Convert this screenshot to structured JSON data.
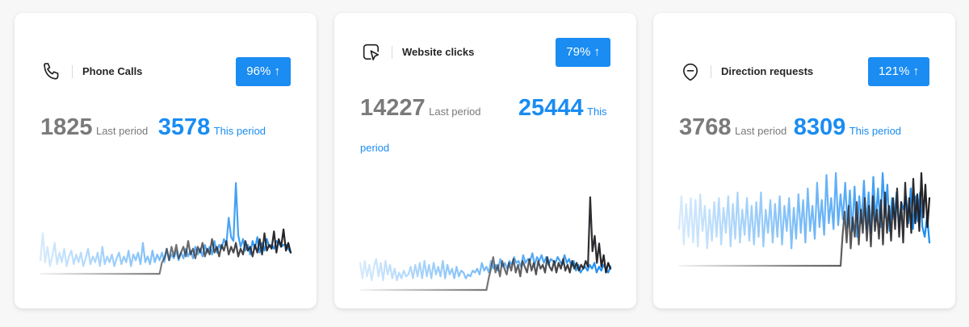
{
  "colors": {
    "accent": "#1a8cf2",
    "muted_text": "#7a7a7a",
    "current_series": "#1a8cf2",
    "previous_series": "#1f1f24"
  },
  "cards": [
    {
      "icon": "phone-icon",
      "title": "Phone Calls",
      "badge": "96% ↑",
      "last_value": "1825",
      "last_label": "Last period",
      "this_value": "3578",
      "this_label": "This period"
    },
    {
      "icon": "click-icon",
      "title": "Website clicks",
      "badge": "79% ↑",
      "last_value": "14227",
      "last_label": "Last period",
      "this_value": "25444",
      "this_label": "This period"
    },
    {
      "icon": "direction-icon",
      "title": "Direction requests",
      "badge": "121% ↑",
      "last_value": "3768",
      "last_label": "Last period",
      "this_value": "8309",
      "this_label": "This period"
    }
  ],
  "chart_data": [
    {
      "type": "line",
      "ylim": [
        0,
        100
      ],
      "series": [
        {
          "values": [
            14,
            42,
            12,
            28,
            8,
            18,
            32,
            10,
            22,
            12,
            26,
            8,
            18,
            24,
            10,
            20,
            12,
            22,
            8,
            16,
            26,
            10,
            18,
            12,
            22,
            8,
            28,
            10,
            18,
            12,
            20,
            8,
            16,
            22,
            10,
            18,
            12,
            24,
            8,
            20,
            14,
            22,
            10,
            32,
            12,
            18,
            10,
            24,
            12,
            20,
            14,
            22,
            12,
            26,
            14,
            20,
            16,
            24,
            14,
            22,
            16,
            26,
            18,
            24,
            16,
            28,
            20,
            26,
            18,
            30,
            22,
            28,
            20,
            34,
            22,
            30,
            26,
            36,
            30,
            58,
            38,
            34,
            94,
            40,
            28,
            36,
            24,
            30,
            20,
            34,
            26,
            38,
            22,
            32,
            24,
            36,
            28,
            30,
            26,
            34,
            32,
            28,
            30,
            30,
            26,
            22
          ]
        },
        {
          "values": [
            0,
            0,
            0,
            0,
            0,
            0,
            0,
            0,
            0,
            0,
            0,
            0,
            0,
            0,
            0,
            0,
            0,
            0,
            0,
            0,
            0,
            0,
            0,
            0,
            0,
            0,
            0,
            0,
            0,
            0,
            0,
            0,
            0,
            0,
            0,
            0,
            0,
            0,
            0,
            0,
            0,
            0,
            0,
            0,
            0,
            0,
            0,
            0,
            0,
            0,
            0,
            12,
            16,
            26,
            14,
            28,
            18,
            30,
            16,
            22,
            28,
            18,
            34,
            20,
            26,
            16,
            28,
            22,
            32,
            18,
            26,
            20,
            36,
            22,
            28,
            18,
            30,
            24,
            34,
            20,
            28,
            22,
            32,
            18,
            26,
            20,
            34,
            24,
            28,
            18,
            30,
            22,
            36,
            20,
            42,
            24,
            30,
            26,
            44,
            22,
            36,
            28,
            46,
            24,
            32,
            22
          ]
        }
      ]
    },
    {
      "type": "line",
      "ylim": [
        0,
        100
      ],
      "series": [
        {
          "values": [
            28,
            12,
            30,
            14,
            26,
            10,
            24,
            32,
            14,
            28,
            10,
            30,
            16,
            26,
            12,
            22,
            10,
            18,
            12,
            20,
            14,
            16,
            24,
            12,
            26,
            14,
            28,
            12,
            30,
            14,
            26,
            12,
            28,
            16,
            24,
            14,
            30,
            12,
            26,
            16,
            22,
            12,
            24,
            14,
            20,
            18,
            12,
            16,
            14,
            20,
            18,
            22,
            16,
            28,
            20,
            24,
            18,
            30,
            22,
            26,
            20,
            32,
            24,
            28,
            22,
            30,
            26,
            34,
            28,
            30,
            24,
            36,
            28,
            32,
            30,
            38,
            26,
            34,
            30,
            36,
            28,
            34,
            26,
            32,
            30,
            28,
            34,
            30,
            26,
            36,
            28,
            32,
            24,
            30,
            20,
            26,
            18,
            22,
            24,
            20,
            26,
            22,
            28,
            18,
            24,
            20,
            26,
            22,
            18,
            24
          ]
        },
        {
          "values": [
            0,
            0,
            0,
            0,
            0,
            0,
            0,
            0,
            0,
            0,
            0,
            0,
            0,
            0,
            0,
            0,
            0,
            0,
            0,
            0,
            0,
            0,
            0,
            0,
            0,
            0,
            0,
            0,
            0,
            0,
            0,
            0,
            0,
            0,
            0,
            0,
            0,
            0,
            0,
            0,
            0,
            0,
            0,
            0,
            0,
            0,
            0,
            0,
            0,
            0,
            0,
            0,
            0,
            0,
            0,
            0,
            0,
            12,
            22,
            34,
            18,
            26,
            14,
            30,
            22,
            16,
            28,
            20,
            32,
            18,
            26,
            14,
            30,
            24,
            18,
            32,
            20,
            28,
            16,
            30,
            22,
            26,
            18,
            34,
            24,
            20,
            30,
            18,
            28,
            22,
            32,
            20,
            26,
            18,
            30,
            22,
            28,
            20,
            26,
            22,
            30,
            24,
            96,
            40,
            56,
            28,
            48,
            24,
            36,
            18,
            28,
            22
          ]
        }
      ]
    },
    {
      "type": "line",
      "ylim": [
        0,
        100
      ],
      "series": [
        {
          "values": [
            38,
            72,
            22,
            64,
            30,
            70,
            24,
            68,
            20,
            74,
            36,
            62,
            18,
            58,
            26,
            66,
            30,
            70,
            22,
            60,
            34,
            72,
            20,
            64,
            28,
            76,
            24,
            58,
            32,
            70,
            26,
            62,
            22,
            66,
            30,
            76,
            20,
            58,
            34,
            68,
            24,
            64,
            30,
            72,
            22,
            62,
            36,
            70,
            18,
            60,
            28,
            74,
            34,
            68,
            24,
            80,
            36,
            62,
            28,
            86,
            40,
            68,
            32,
            94,
            44,
            70,
            38,
            96,
            42,
            74,
            48,
            86,
            40,
            78,
            36,
            82,
            30,
            72,
            44,
            88,
            38,
            76,
            34,
            92,
            46,
            80,
            40,
            96,
            50,
            84,
            36,
            70,
            48,
            76,
            40,
            66,
            58,
            72,
            44,
            80,
            38,
            72,
            46,
            76,
            40,
            30,
            52,
            24
          ]
        },
        {
          "values": [
            0,
            0,
            0,
            0,
            0,
            0,
            0,
            0,
            0,
            0,
            0,
            0,
            0,
            0,
            0,
            0,
            0,
            0,
            0,
            0,
            0,
            0,
            0,
            0,
            0,
            0,
            0,
            0,
            0,
            0,
            0,
            0,
            0,
            0,
            0,
            0,
            0,
            0,
            0,
            0,
            0,
            0,
            0,
            0,
            0,
            0,
            0,
            0,
            0,
            0,
            0,
            0,
            0,
            0,
            0,
            0,
            0,
            0,
            0,
            0,
            0,
            0,
            0,
            0,
            0,
            0,
            0,
            0,
            0,
            0,
            0,
            0,
            0,
            0,
            0,
            0,
            0,
            0,
            0,
            0,
            0,
            32,
            56,
            24,
            62,
            18,
            50,
            30,
            66,
            22,
            58,
            34,
            70,
            26,
            62,
            20,
            72,
            36,
            58,
            28,
            68,
            22,
            76,
            34,
            62,
            26,
            70,
            38,
            80,
            30,
            66,
            24,
            86,
            40,
            70,
            34,
            90,
            44,
            74,
            36,
            96,
            50,
            84,
            40,
            70
          ]
        }
      ]
    }
  ]
}
